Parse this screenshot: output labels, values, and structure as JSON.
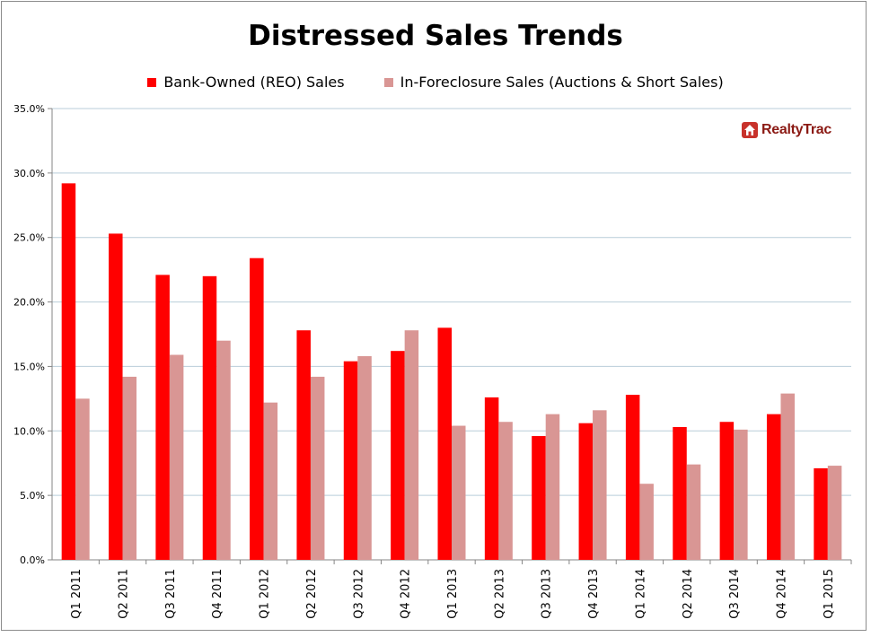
{
  "logo": {
    "text": "RealtyTrac",
    "icon": "house-icon"
  },
  "colors": {
    "reo": "#ff0000",
    "preforeclosure": "#d99694",
    "grid": "#b9cdd9",
    "axis": "#868686"
  },
  "chart_data": {
    "type": "bar",
    "title": "Distressed Sales Trends",
    "xlabel": "",
    "ylabel": "",
    "ylim": [
      0,
      35
    ],
    "y_ticks": [
      "0.0%",
      "5.0%",
      "10.0%",
      "15.0%",
      "20.0%",
      "25.0%",
      "30.0%",
      "35.0%"
    ],
    "grid": true,
    "legend_position": "top",
    "categories": [
      "Q1 2011",
      "Q2 2011",
      "Q3 2011",
      "Q4 2011",
      "Q1 2012",
      "Q2 2012",
      "Q3 2012",
      "Q4 2012",
      "Q1 2013",
      "Q2 2013",
      "Q3 2013",
      "Q4 2013",
      "Q1 2014",
      "Q2 2014",
      "Q3 2014",
      "Q4 2014",
      "Q1 2015"
    ],
    "series": [
      {
        "name": "Bank-Owned (REO) Sales",
        "values": [
          29.2,
          25.3,
          22.1,
          22.0,
          23.4,
          17.8,
          15.4,
          16.2,
          18.0,
          12.6,
          9.6,
          10.6,
          12.8,
          10.3,
          10.7,
          11.3,
          7.1
        ]
      },
      {
        "name": "In-Foreclosure Sales (Auctions & Short Sales)",
        "values": [
          12.5,
          14.2,
          15.9,
          17.0,
          12.2,
          14.2,
          15.8,
          17.8,
          10.4,
          10.7,
          11.3,
          11.6,
          5.9,
          7.4,
          10.1,
          12.9,
          7.3
        ]
      }
    ]
  }
}
